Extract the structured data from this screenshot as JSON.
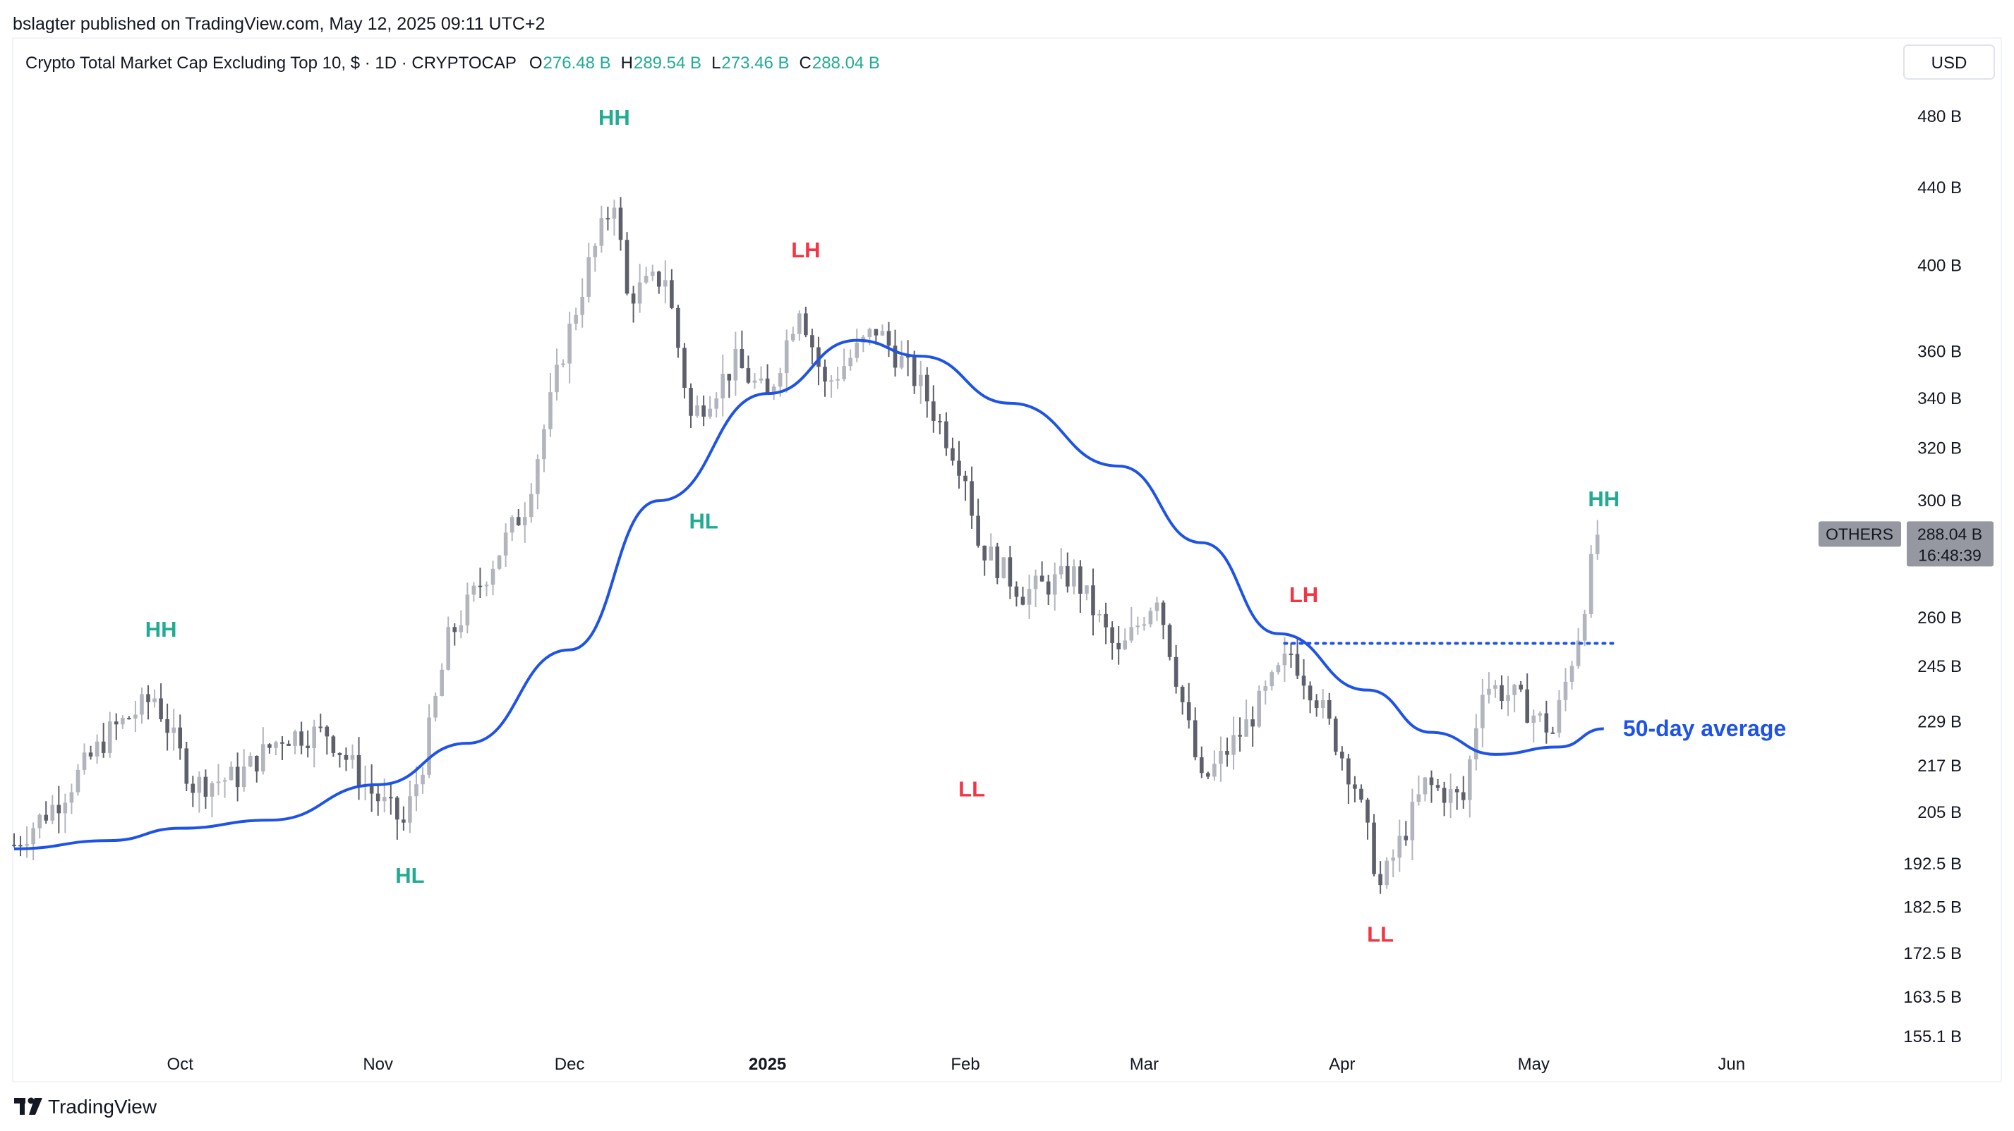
{
  "header": {
    "publisher_line": "bslagter published on TradingView.com, May 12, 2025 09:11 UTC+2",
    "symbol_title": "Crypto Total Market Cap Excluding Top 10, $ · 1D · CRYPTOCAP",
    "ohlc": [
      {
        "key": "O",
        "value": "276.48 B"
      },
      {
        "key": "H",
        "value": "289.54 B"
      },
      {
        "key": "L",
        "value": "273.46 B"
      },
      {
        "key": "C",
        "value": "288.04 B"
      }
    ],
    "currency_button": "USD"
  },
  "footer": {
    "brand": "TradingView"
  },
  "colors": {
    "candle": "#b2b5be",
    "candle_dark": "#5d606b",
    "ma_line": "#1e53e5",
    "green_label": "#22ab94",
    "red_label": "#f23645",
    "badge_bg": "#9598a1"
  },
  "chart_data": {
    "type": "candlestick",
    "price_scale": "log",
    "ylim": [
      155.1,
      500
    ],
    "y_ticks": [
      "480 B",
      "440 B",
      "400 B",
      "360 B",
      "340 B",
      "320 B",
      "300 B",
      "260 B",
      "245 B",
      "229 B",
      "217 B",
      "205 B",
      "192.5 B",
      "182.5 B",
      "172.5 B",
      "163.5 B",
      "155.1 B"
    ],
    "y_tick_values": [
      480,
      440,
      400,
      360,
      340,
      320,
      300,
      260,
      245,
      229,
      217,
      205,
      192.5,
      182.5,
      172.5,
      163.5,
      155.1
    ],
    "x_ticks": [
      {
        "label": "Oct",
        "date": "2024-10-01",
        "bold": false
      },
      {
        "label": "Nov",
        "date": "2024-11-01",
        "bold": false
      },
      {
        "label": "Dec",
        "date": "2024-12-01",
        "bold": false
      },
      {
        "label": "2025",
        "date": "2025-01-01",
        "bold": true
      },
      {
        "label": "Feb",
        "date": "2025-02-01",
        "bold": false
      },
      {
        "label": "Mar",
        "date": "2025-03-01",
        "bold": false
      },
      {
        "label": "Apr",
        "date": "2025-04-01",
        "bold": false
      },
      {
        "label": "May",
        "date": "2025-05-01",
        "bold": false
      },
      {
        "label": "Jun",
        "date": "2025-06-01",
        "bold": false
      }
    ],
    "xlim": [
      "2024-09-05",
      "2025-06-28"
    ],
    "closes": [
      {
        "date": "2024-09-05",
        "value": 197
      },
      {
        "date": "2024-09-12",
        "value": 208
      },
      {
        "date": "2024-09-20",
        "value": 226
      },
      {
        "date": "2024-09-27",
        "value": 236
      },
      {
        "date": "2024-10-03",
        "value": 212
      },
      {
        "date": "2024-10-10",
        "value": 214
      },
      {
        "date": "2024-10-17",
        "value": 225
      },
      {
        "date": "2024-10-24",
        "value": 226
      },
      {
        "date": "2024-10-31",
        "value": 210
      },
      {
        "date": "2024-11-05",
        "value": 202
      },
      {
        "date": "2024-11-08",
        "value": 218
      },
      {
        "date": "2024-11-12",
        "value": 253
      },
      {
        "date": "2024-11-17",
        "value": 271
      },
      {
        "date": "2024-11-24",
        "value": 298
      },
      {
        "date": "2024-11-30",
        "value": 360
      },
      {
        "date": "2024-12-04",
        "value": 400
      },
      {
        "date": "2024-12-08",
        "value": 435
      },
      {
        "date": "2024-12-10",
        "value": 385
      },
      {
        "date": "2024-12-16",
        "value": 395
      },
      {
        "date": "2024-12-20",
        "value": 332
      },
      {
        "date": "2024-12-27",
        "value": 355
      },
      {
        "date": "2025-01-01",
        "value": 340
      },
      {
        "date": "2025-01-06",
        "value": 382
      },
      {
        "date": "2025-01-10",
        "value": 345
      },
      {
        "date": "2025-01-18",
        "value": 370
      },
      {
        "date": "2025-01-25",
        "value": 345
      },
      {
        "date": "2025-02-01",
        "value": 310
      },
      {
        "date": "2025-02-03",
        "value": 285
      },
      {
        "date": "2025-02-10",
        "value": 268
      },
      {
        "date": "2025-02-18",
        "value": 274
      },
      {
        "date": "2025-02-25",
        "value": 248
      },
      {
        "date": "2025-03-03",
        "value": 268
      },
      {
        "date": "2025-03-10",
        "value": 212
      },
      {
        "date": "2025-03-17",
        "value": 228
      },
      {
        "date": "2025-03-24",
        "value": 249
      },
      {
        "date": "2025-03-28",
        "value": 236
      },
      {
        "date": "2025-04-03",
        "value": 212
      },
      {
        "date": "2025-04-07",
        "value": 187
      },
      {
        "date": "2025-04-14",
        "value": 212
      },
      {
        "date": "2025-04-20",
        "value": 208
      },
      {
        "date": "2025-04-23",
        "value": 240
      },
      {
        "date": "2025-04-28",
        "value": 236
      },
      {
        "date": "2025-05-04",
        "value": 226
      },
      {
        "date": "2025-05-08",
        "value": 255
      },
      {
        "date": "2025-05-11",
        "value": 288.04
      }
    ],
    "series": [
      {
        "name": "50-day average",
        "values": [
          {
            "date": "2024-09-05",
            "value": 196
          },
          {
            "date": "2024-09-20",
            "value": 198
          },
          {
            "date": "2024-10-01",
            "value": 201
          },
          {
            "date": "2024-10-15",
            "value": 203
          },
          {
            "date": "2024-11-01",
            "value": 212
          },
          {
            "date": "2024-11-15",
            "value": 223
          },
          {
            "date": "2024-12-01",
            "value": 250
          },
          {
            "date": "2024-12-15",
            "value": 300
          },
          {
            "date": "2025-01-01",
            "value": 342
          },
          {
            "date": "2025-01-15",
            "value": 365
          },
          {
            "date": "2025-01-25",
            "value": 358
          },
          {
            "date": "2025-02-08",
            "value": 338
          },
          {
            "date": "2025-02-25",
            "value": 313
          },
          {
            "date": "2025-03-10",
            "value": 285
          },
          {
            "date": "2025-03-22",
            "value": 255
          },
          {
            "date": "2025-04-05",
            "value": 238
          },
          {
            "date": "2025-04-15",
            "value": 226
          },
          {
            "date": "2025-04-25",
            "value": 220
          },
          {
            "date": "2025-05-05",
            "value": 222
          },
          {
            "date": "2025-05-12",
            "value": 227
          }
        ]
      }
    ],
    "resistance_line": {
      "value": 252,
      "from": "2025-03-23",
      "to": "2025-05-14"
    },
    "annotations": [
      {
        "text": "HH",
        "date": "2024-09-28",
        "value": 254,
        "kind": "high"
      },
      {
        "text": "HL",
        "date": "2024-11-06",
        "value": 188,
        "kind": "high"
      },
      {
        "text": "HH",
        "date": "2024-12-08",
        "value": 475,
        "kind": "high"
      },
      {
        "text": "HL",
        "date": "2024-12-22",
        "value": 290,
        "kind": "high"
      },
      {
        "text": "LH",
        "date": "2025-01-07",
        "value": 404,
        "kind": "low"
      },
      {
        "text": "LL",
        "date": "2025-02-02",
        "value": 209,
        "kind": "low"
      },
      {
        "text": "LH",
        "date": "2025-03-26",
        "value": 265,
        "kind": "low"
      },
      {
        "text": "LL",
        "date": "2025-04-07",
        "value": 175,
        "kind": "low"
      },
      {
        "text": "HH",
        "date": "2025-05-12",
        "value": 298,
        "kind": "high"
      },
      {
        "text": "50-day average",
        "date": "2025-05-15",
        "value": 225,
        "kind": "ma"
      }
    ],
    "price_badge": {
      "symbol": "OTHERS",
      "price": "288.04 B",
      "countdown": "16:48:39",
      "value": 288.04
    }
  }
}
